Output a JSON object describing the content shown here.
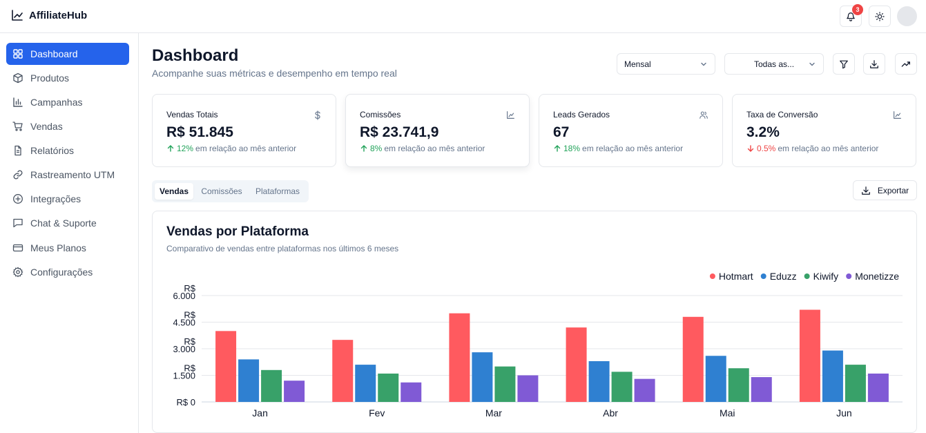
{
  "app": {
    "name": "AffiliateHub"
  },
  "header": {
    "notification_count": "3"
  },
  "sidebar": {
    "items": [
      {
        "label": "Dashboard",
        "icon": "dashboard-icon"
      },
      {
        "label": "Produtos",
        "icon": "package-icon"
      },
      {
        "label": "Campanhas",
        "icon": "bar-chart-icon"
      },
      {
        "label": "Vendas",
        "icon": "cart-icon"
      },
      {
        "label": "Relatórios",
        "icon": "file-icon"
      },
      {
        "label": "Rastreamento UTM",
        "icon": "link-icon"
      },
      {
        "label": "Integrações",
        "icon": "plus-circle-icon"
      },
      {
        "label": "Chat & Suporte",
        "icon": "chat-icon"
      },
      {
        "label": "Meus Planos",
        "icon": "credit-card-icon"
      },
      {
        "label": "Configurações",
        "icon": "gear-icon"
      }
    ]
  },
  "page": {
    "title": "Dashboard",
    "subtitle": "Acompanhe suas métricas e desempenho em tempo real"
  },
  "filters": {
    "period": "Mensal",
    "platform": "Todas as..."
  },
  "stats": [
    {
      "label": "Vendas Totais",
      "value": "R$ 51.845",
      "delta": "12%",
      "trend": "up",
      "note": "em relação ao mês anterior",
      "icon": "dollar-icon"
    },
    {
      "label": "Comissões",
      "value": "R$ 23.741,9",
      "delta": "8%",
      "trend": "up",
      "note": "em relação ao mês anterior",
      "icon": "line-chart-icon"
    },
    {
      "label": "Leads Gerados",
      "value": "67",
      "delta": "18%",
      "trend": "up",
      "note": "em relação ao mês anterior",
      "icon": "users-icon"
    },
    {
      "label": "Taxa de Conversão",
      "value": "3.2%",
      "delta": "0.5%",
      "trend": "down",
      "note": "em relação ao mês anterior",
      "icon": "line-chart-icon"
    }
  ],
  "tabs": [
    {
      "label": "Vendas",
      "active": true
    },
    {
      "label": "Comissões",
      "active": false
    },
    {
      "label": "Plataformas",
      "active": false
    }
  ],
  "export_label": "Exportar",
  "chart": {
    "title": "Vendas por Plataforma",
    "subtitle": "Comparativo de vendas entre plataformas nos últimos 6 meses"
  },
  "chart_data": {
    "type": "bar",
    "categories": [
      "Jan",
      "Fev",
      "Mar",
      "Abr",
      "Mai",
      "Jun"
    ],
    "series": [
      {
        "name": "Hotmart",
        "color": "#ff5a5f",
        "values": [
          4000,
          3500,
          5000,
          4200,
          4800,
          5200
        ]
      },
      {
        "name": "Eduzz",
        "color": "#2f80d1",
        "values": [
          2400,
          2100,
          2800,
          2300,
          2600,
          2900
        ]
      },
      {
        "name": "Kiwify",
        "color": "#38a169",
        "values": [
          1800,
          1600,
          2000,
          1700,
          1900,
          2100
        ]
      },
      {
        "name": "Monetizze",
        "color": "#805ad5",
        "values": [
          1200,
          1100,
          1500,
          1300,
          1400,
          1600
        ]
      }
    ],
    "ylim": [
      0,
      6000
    ],
    "yticks": [
      {
        "line1": "R$",
        "line2": "6.000",
        "value": 6000
      },
      {
        "line1": "R$",
        "line2": "4.500",
        "value": 4500
      },
      {
        "line1": "R$",
        "line2": "3.000",
        "value": 3000
      },
      {
        "line1": "R$",
        "line2": "1.500",
        "value": 1500
      },
      {
        "line1": "",
        "line2": "R$ 0",
        "value": 0
      }
    ],
    "grid": true,
    "legend": "top-right"
  }
}
